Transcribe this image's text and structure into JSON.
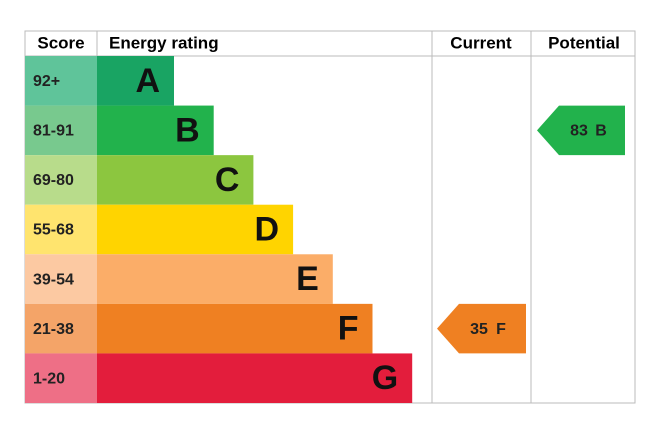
{
  "header": {
    "score": "Score",
    "rating": "Energy rating",
    "current": "Current",
    "potential": "Potential"
  },
  "bands": [
    {
      "score": "92+",
      "letter": "A",
      "color": "#19a463",
      "score_color": "#5fc49a"
    },
    {
      "score": "81-91",
      "letter": "B",
      "color": "#22b24c",
      "score_color": "#78c98e"
    },
    {
      "score": "69-80",
      "letter": "C",
      "color": "#8cc63f",
      "score_color": "#b8dc8b"
    },
    {
      "score": "55-68",
      "letter": "D",
      "color": "#ffd400",
      "score_color": "#ffe46e"
    },
    {
      "score": "39-54",
      "letter": "E",
      "color": "#fbad68",
      "score_color": "#fcc9a2"
    },
    {
      "score": "21-38",
      "letter": "F",
      "color": "#ef8022",
      "score_color": "#f4a468"
    },
    {
      "score": "1-20",
      "letter": "G",
      "color": "#e31d3c",
      "score_color": "#ee6f86"
    }
  ],
  "current": {
    "value": 35,
    "rating": "F"
  },
  "potential": {
    "value": 83,
    "rating": "B"
  }
}
